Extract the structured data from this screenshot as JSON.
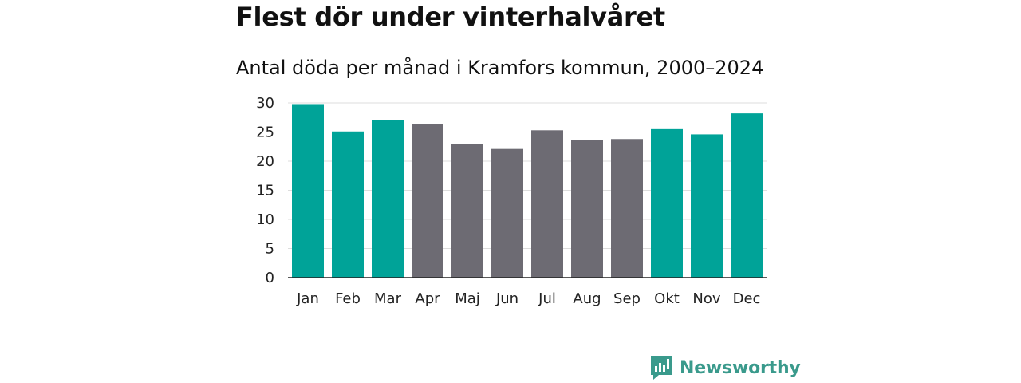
{
  "header": {
    "title": "Flest dör under vinterhalvåret",
    "subtitle": "Antal döda per månad i Kramfors kommun, 2000–2024"
  },
  "brand": {
    "name": "Newsworthy"
  },
  "colors": {
    "winter": "#00a398",
    "summer": "#6d6b73",
    "brand": "#3a9a8c",
    "grid": "#dddddd",
    "axis": "#222222"
  },
  "chart_data": {
    "type": "bar",
    "title": "Flest dör under vinterhalvåret",
    "subtitle": "Antal döda per månad i Kramfors kommun, 2000–2024",
    "xlabel": "",
    "ylabel": "",
    "ylim": [
      0,
      30
    ],
    "yticks": [
      0,
      5,
      10,
      15,
      20,
      25,
      30
    ],
    "grid": true,
    "categories": [
      "Jan",
      "Feb",
      "Mar",
      "Apr",
      "Maj",
      "Jun",
      "Jul",
      "Aug",
      "Sep",
      "Okt",
      "Nov",
      "Dec"
    ],
    "values": [
      29.8,
      25.1,
      27.0,
      26.3,
      22.9,
      22.1,
      25.3,
      23.6,
      23.8,
      25.5,
      24.6,
      28.2
    ],
    "bar_group": [
      "winter",
      "winter",
      "winter",
      "summer",
      "summer",
      "summer",
      "summer",
      "summer",
      "summer",
      "winter",
      "winter",
      "winter"
    ]
  }
}
